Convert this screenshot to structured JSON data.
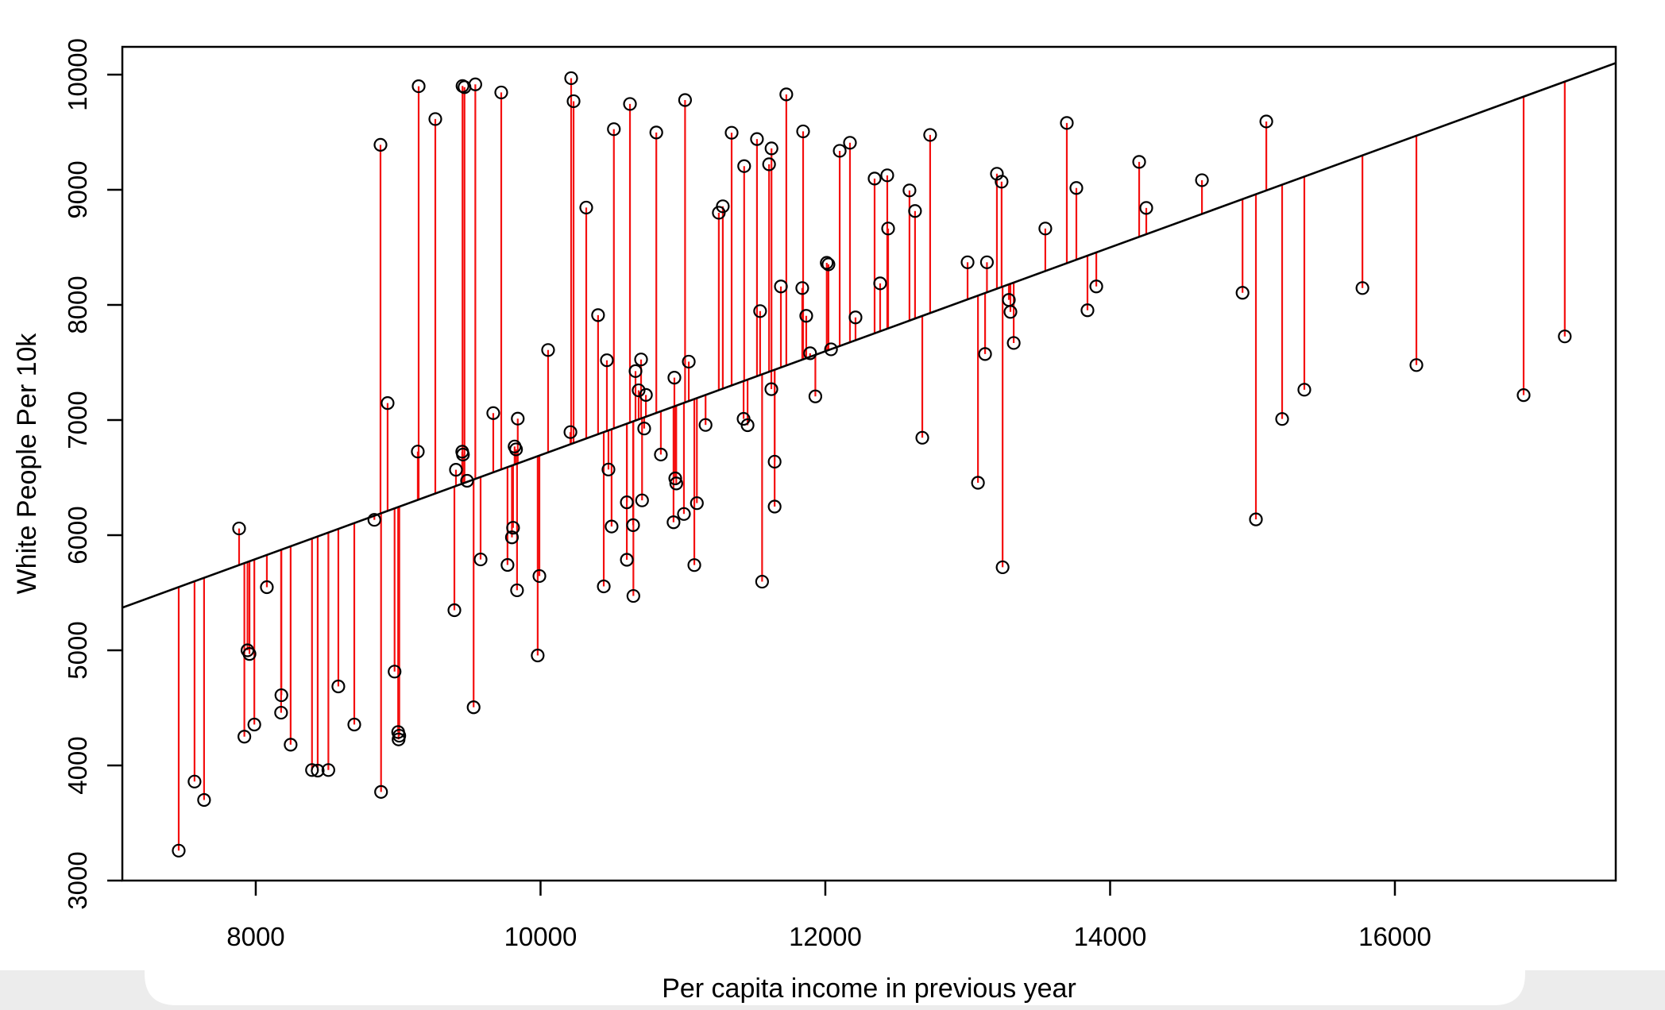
{
  "page": {
    "background": "#ffffff",
    "bottom_bar_color": "#ececec",
    "card_color": "#ffffff"
  },
  "chart_data": {
    "type": "scatter",
    "title": "",
    "xlabel": "Per capita income in previous year",
    "ylabel": "White People Per 10k",
    "xlim": [
      7063,
      17551
    ],
    "ylim": [
      3000,
      10241
    ],
    "x_ticks": [
      8000,
      10000,
      12000,
      14000,
      16000
    ],
    "y_ticks": [
      3000,
      4000,
      5000,
      6000,
      7000,
      8000,
      9000,
      10000
    ],
    "grid": false,
    "legend_position": "none",
    "point_color": "#000000",
    "point_radius": 7.5,
    "residual_color": "#f40f0f",
    "line_color": "#000000",
    "regression_line": {
      "slope": 0.451,
      "intercept": 2185
    },
    "points": [
      [
        7459,
        3260
      ],
      [
        7570,
        3860
      ],
      [
        7637,
        3700
      ],
      [
        7883,
        6058
      ],
      [
        7920,
        4250
      ],
      [
        7942,
        5000
      ],
      [
        7956,
        4968
      ],
      [
        7990,
        4355
      ],
      [
        8078,
        5548
      ],
      [
        8178,
        4458
      ],
      [
        8180,
        4610
      ],
      [
        8245,
        4180
      ],
      [
        8395,
        3960
      ],
      [
        8435,
        3955
      ],
      [
        8510,
        3960
      ],
      [
        8580,
        4686
      ],
      [
        8692,
        4355
      ],
      [
        8833,
        6133
      ],
      [
        8876,
        9390
      ],
      [
        8880,
        3770
      ],
      [
        8926,
        7147
      ],
      [
        8975,
        4815
      ],
      [
        9000,
        4290
      ],
      [
        9008,
        4258
      ],
      [
        9003,
        4226
      ],
      [
        9138,
        6726
      ],
      [
        9144,
        9899
      ],
      [
        9261,
        9614
      ],
      [
        9395,
        5348
      ],
      [
        9406,
        6568
      ],
      [
        9452,
        9901
      ],
      [
        9466,
        9891
      ],
      [
        9450,
        6725
      ],
      [
        9455,
        6700
      ],
      [
        9484,
        6472
      ],
      [
        9530,
        4505
      ],
      [
        9542,
        9915
      ],
      [
        9579,
        5789
      ],
      [
        9668,
        7060
      ],
      [
        9724,
        9845
      ],
      [
        9768,
        5741
      ],
      [
        9799,
        5981
      ],
      [
        9807,
        6064
      ],
      [
        9818,
        6770
      ],
      [
        9828,
        6745
      ],
      [
        9840,
        7012
      ],
      [
        9835,
        5521
      ],
      [
        9980,
        4955
      ],
      [
        9992,
        5645
      ],
      [
        10053,
        7608
      ],
      [
        10210,
        6895
      ],
      [
        10215,
        9969
      ],
      [
        10232,
        9769
      ],
      [
        10321,
        8845
      ],
      [
        10404,
        7911
      ],
      [
        10444,
        5555
      ],
      [
        10466,
        7519
      ],
      [
        10477,
        6570
      ],
      [
        10499,
        6075
      ],
      [
        10515,
        9526
      ],
      [
        10606,
        6285
      ],
      [
        10606,
        5786
      ],
      [
        10628,
        9745
      ],
      [
        10650,
        6087
      ],
      [
        10652,
        5472
      ],
      [
        10667,
        7425
      ],
      [
        10689,
        7258
      ],
      [
        10706,
        7526
      ],
      [
        10713,
        6302
      ],
      [
        10728,
        6926
      ],
      [
        10740,
        7218
      ],
      [
        10813,
        9497
      ],
      [
        10845,
        6700
      ],
      [
        10934,
        6112
      ],
      [
        10940,
        7368
      ],
      [
        10946,
        6493
      ],
      [
        10953,
        6449
      ],
      [
        11007,
        6184
      ],
      [
        11015,
        9779
      ],
      [
        11041,
        7507
      ],
      [
        11080,
        5740
      ],
      [
        11098,
        6278
      ],
      [
        11159,
        6957
      ],
      [
        11252,
        8800
      ],
      [
        11280,
        8856
      ],
      [
        11342,
        9495
      ],
      [
        11426,
        7010
      ],
      [
        11430,
        9205
      ],
      [
        11454,
        6955
      ],
      [
        11520,
        9440
      ],
      [
        11542,
        7946
      ],
      [
        11556,
        5596
      ],
      [
        11605,
        9221
      ],
      [
        11621,
        7268
      ],
      [
        11622,
        9359
      ],
      [
        11644,
        6638
      ],
      [
        11644,
        6248
      ],
      [
        11688,
        8160
      ],
      [
        11726,
        9828
      ],
      [
        11838,
        8146
      ],
      [
        11844,
        9507
      ],
      [
        11866,
        7905
      ],
      [
        11893,
        7580
      ],
      [
        11930,
        7205
      ],
      [
        12010,
        8365
      ],
      [
        12022,
        8352
      ],
      [
        12040,
        7614
      ],
      [
        12101,
        9338
      ],
      [
        12173,
        9408
      ],
      [
        12212,
        7891
      ],
      [
        12346,
        9097
      ],
      [
        12385,
        8187
      ],
      [
        12435,
        9125
      ],
      [
        12441,
        8663
      ],
      [
        12591,
        8994
      ],
      [
        12630,
        8815
      ],
      [
        12681,
        6846
      ],
      [
        12736,
        9476
      ],
      [
        12999,
        8370
      ],
      [
        13072,
        6455
      ],
      [
        13122,
        7573
      ],
      [
        13135,
        8370
      ],
      [
        13205,
        9139
      ],
      [
        13238,
        9070
      ],
      [
        13245,
        5721
      ],
      [
        13289,
        8043
      ],
      [
        13300,
        7939
      ],
      [
        13323,
        7669
      ],
      [
        13545,
        8663
      ],
      [
        13696,
        9580
      ],
      [
        13763,
        9015
      ],
      [
        13841,
        7953
      ],
      [
        13903,
        8160
      ],
      [
        14204,
        9242
      ],
      [
        14254,
        8842
      ],
      [
        14645,
        9083
      ],
      [
        14930,
        8105
      ],
      [
        15024,
        6137
      ],
      [
        15097,
        9593
      ],
      [
        15208,
        7009
      ],
      [
        15364,
        7263
      ],
      [
        15772,
        8146
      ],
      [
        16151,
        7477
      ],
      [
        16904,
        7216
      ],
      [
        17193,
        7726
      ]
    ]
  }
}
